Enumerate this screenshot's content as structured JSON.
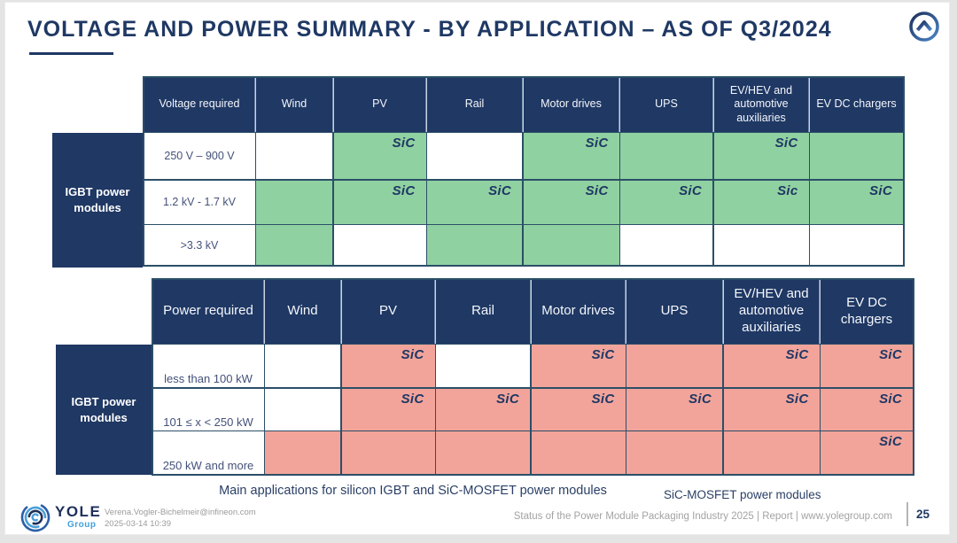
{
  "slide": {
    "title": "VOLTAGE AND POWER SUMMARY - BY APPLICATION – AS OF Q3/2024"
  },
  "colors": {
    "navy": "#1F3864",
    "green_fill": "#90D1A1",
    "pink_fill": "#F2A49B",
    "grid_line": "#2b4f68",
    "brand_light_blue": "#3FA0DC"
  },
  "tables": [
    {
      "name": "voltage",
      "corner_label": "Voltage required",
      "side_label": "IGBT power modules",
      "fill_color": "#90D1A1",
      "columns": [
        "Wind",
        "PV",
        "Rail",
        "Motor drives",
        "UPS",
        "EV/HEV and automotive auxiliaries",
        "EV DC chargers"
      ],
      "rows": [
        {
          "label": "250 V – 900 V",
          "cells": [
            {
              "filled": false,
              "label": ""
            },
            {
              "filled": true,
              "label": "SiC"
            },
            {
              "filled": false,
              "label": ""
            },
            {
              "filled": true,
              "label": "SiC"
            },
            {
              "filled": true,
              "label": ""
            },
            {
              "filled": true,
              "label": "SiC"
            },
            {
              "filled": true,
              "label": ""
            }
          ]
        },
        {
          "label": "1.2 kV - 1.7 kV",
          "cells": [
            {
              "filled": true,
              "label": ""
            },
            {
              "filled": true,
              "label": "SiC"
            },
            {
              "filled": true,
              "label": "SiC"
            },
            {
              "filled": true,
              "label": "SiC"
            },
            {
              "filled": true,
              "label": "SiC"
            },
            {
              "filled": true,
              "label": "Sic"
            },
            {
              "filled": true,
              "label": "SiC"
            }
          ]
        },
        {
          "label": ">3.3 kV",
          "cells": [
            {
              "filled": true,
              "label": ""
            },
            {
              "filled": false,
              "label": ""
            },
            {
              "filled": true,
              "label": ""
            },
            {
              "filled": true,
              "label": ""
            },
            {
              "filled": false,
              "label": ""
            },
            {
              "filled": false,
              "label": ""
            },
            {
              "filled": false,
              "label": ""
            }
          ]
        }
      ]
    },
    {
      "name": "power",
      "corner_label": "Power required",
      "side_label": "IGBT power modules",
      "fill_color": "#F2A49B",
      "columns": [
        "Wind",
        "PV",
        "Rail",
        "Motor drives",
        "UPS",
        "EV/HEV and automotive auxiliaries",
        "EV DC chargers"
      ],
      "rows": [
        {
          "label": "less than 100 kW",
          "cells": [
            {
              "filled": false,
              "label": ""
            },
            {
              "filled": true,
              "label": "SiC"
            },
            {
              "filled": false,
              "label": ""
            },
            {
              "filled": true,
              "label": "SiC"
            },
            {
              "filled": true,
              "label": ""
            },
            {
              "filled": true,
              "label": "SiC"
            },
            {
              "filled": true,
              "label": "SiC"
            }
          ]
        },
        {
          "label": "101 ≤ x < 250 kW",
          "cells": [
            {
              "filled": false,
              "label": ""
            },
            {
              "filled": true,
              "label": "SiC"
            },
            {
              "filled": true,
              "label": "SiC"
            },
            {
              "filled": true,
              "label": "SiC"
            },
            {
              "filled": true,
              "label": "SiC"
            },
            {
              "filled": true,
              "label": "SiC"
            },
            {
              "filled": true,
              "label": "SiC"
            }
          ]
        },
        {
          "label": "250 kW and more",
          "cells": [
            {
              "filled": true,
              "label": ""
            },
            {
              "filled": true,
              "label": ""
            },
            {
              "filled": true,
              "label": ""
            },
            {
              "filled": true,
              "label": ""
            },
            {
              "filled": true,
              "label": ""
            },
            {
              "filled": true,
              "label": ""
            },
            {
              "filled": true,
              "label": "SiC"
            }
          ]
        }
      ]
    }
  ],
  "captions": {
    "main": "Main applications for silicon IGBT and SiC-MOSFET power modules",
    "right": "SiC-MOSFET power modules"
  },
  "footer": {
    "brand_name": "YOLE",
    "brand_sub": "Group",
    "email": "Verena.Vogler-Bichelmeir@infineon.com",
    "datetime": "2025-03-14 10:39",
    "source": "Status of the Power Module Packaging Industry 2025 | Report | www.yolegroup.com",
    "page_number": "25"
  }
}
